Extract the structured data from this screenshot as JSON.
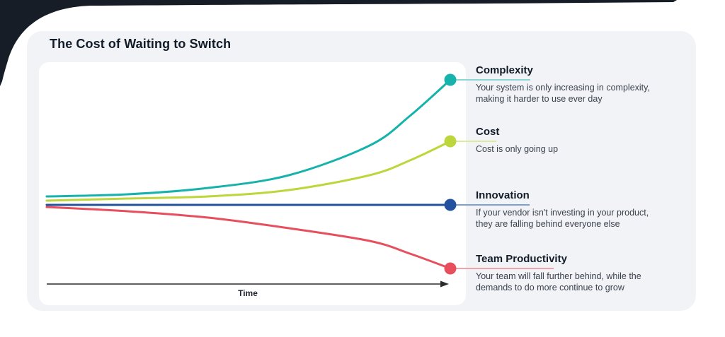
{
  "title": "The Cost of Waiting to Switch",
  "colors": {
    "corner_decoration": "#161d27",
    "card_background": "#f2f3f7",
    "plot_background": "#ffffff",
    "axis": "#2b2b2b",
    "heading_text": "#121c28",
    "body_text": "#3b424e"
  },
  "chart_data": {
    "type": "line",
    "title": "The Cost of Waiting to Switch",
    "xlabel": "Time",
    "ylabel": "",
    "x": [
      0,
      2,
      4,
      6,
      8,
      9,
      10
    ],
    "x_range": [
      0,
      10
    ],
    "y_range": [
      0,
      1
    ],
    "grid": false,
    "legend_position": "right",
    "axis_arrow": true,
    "series": [
      {
        "name": "Complexity",
        "color": "#16b3ac",
        "connector_color": "#8ad6d2",
        "trend": "exponential increase",
        "values": [
          0.44,
          0.45,
          0.48,
          0.54,
          0.68,
          0.82,
          0.99
        ],
        "description": "Your system is only increasing in complexity,\nmaking it harder to use ever day"
      },
      {
        "name": "Cost",
        "color": "#bdd63b",
        "connector_color": "#dcea9d",
        "trend": "accelerating increase",
        "values": [
          0.42,
          0.43,
          0.44,
          0.47,
          0.54,
          0.61,
          0.7
        ],
        "description": "Cost is only going up"
      },
      {
        "name": "Innovation",
        "color": "#23519d",
        "connector_color": "#7fa0cf",
        "trend": "flat",
        "values": [
          0.4,
          0.4,
          0.4,
          0.4,
          0.4,
          0.4,
          0.4
        ],
        "description": "If your vendor isn't investing in your product,\nthey are falling behind everyone else"
      },
      {
        "name": "Team Productivity",
        "color": "#e84f5e",
        "connector_color": "#f0a4aa",
        "trend": "accelerating decline",
        "values": [
          0.39,
          0.37,
          0.34,
          0.29,
          0.23,
          0.17,
          0.1
        ],
        "description": "Your team will fall further behind, while the\ndemands to do more continue to grow"
      }
    ]
  }
}
